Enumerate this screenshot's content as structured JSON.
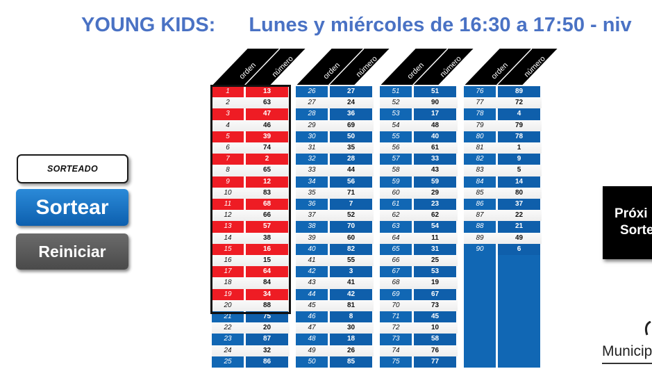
{
  "header": {
    "title_left": "YOUNG KIDS:",
    "title_right": "Lunes y miércoles de 16:30 a 17:50 - niv"
  },
  "controls": {
    "status_label": "SORTEADO",
    "draw_button": "Sortear",
    "reset_button": "Reiniciar",
    "next_line1": "Próxi",
    "next_line2": "Sorte",
    "brand_text": "Municip"
  },
  "table": {
    "col_header_order": "orden",
    "col_header_number": "número",
    "drawn_count": 20,
    "highlight_orders": [
      1,
      3,
      5,
      7,
      9,
      11,
      13,
      15,
      17,
      19
    ],
    "columns": [
      {
        "rows": [
          [
            "1",
            "13"
          ],
          [
            "2",
            "63"
          ],
          [
            "3",
            "47"
          ],
          [
            "4",
            "46"
          ],
          [
            "5",
            "39"
          ],
          [
            "6",
            "74"
          ],
          [
            "7",
            "2"
          ],
          [
            "8",
            "65"
          ],
          [
            "9",
            "12"
          ],
          [
            "10",
            "83"
          ],
          [
            "11",
            "68"
          ],
          [
            "12",
            "66"
          ],
          [
            "13",
            "57"
          ],
          [
            "14",
            "38"
          ],
          [
            "15",
            "16"
          ],
          [
            "16",
            "15"
          ],
          [
            "17",
            "64"
          ],
          [
            "18",
            "84"
          ],
          [
            "19",
            "34"
          ],
          [
            "20",
            "88"
          ],
          [
            "21",
            "75"
          ],
          [
            "22",
            "20"
          ],
          [
            "23",
            "87"
          ],
          [
            "24",
            "32"
          ],
          [
            "25",
            "86"
          ]
        ]
      },
      {
        "rows": [
          [
            "26",
            "27"
          ],
          [
            "27",
            "24"
          ],
          [
            "28",
            "36"
          ],
          [
            "29",
            "69"
          ],
          [
            "30",
            "50"
          ],
          [
            "31",
            "35"
          ],
          [
            "32",
            "28"
          ],
          [
            "33",
            "44"
          ],
          [
            "34",
            "56"
          ],
          [
            "35",
            "71"
          ],
          [
            "36",
            "7"
          ],
          [
            "37",
            "52"
          ],
          [
            "38",
            "70"
          ],
          [
            "39",
            "60"
          ],
          [
            "40",
            "82"
          ],
          [
            "41",
            "55"
          ],
          [
            "42",
            "3"
          ],
          [
            "43",
            "41"
          ],
          [
            "44",
            "42"
          ],
          [
            "45",
            "81"
          ],
          [
            "46",
            "8"
          ],
          [
            "47",
            "30"
          ],
          [
            "48",
            "18"
          ],
          [
            "49",
            "26"
          ],
          [
            "50",
            "85"
          ]
        ]
      },
      {
        "rows": [
          [
            "51",
            "51"
          ],
          [
            "52",
            "90"
          ],
          [
            "53",
            "17"
          ],
          [
            "54",
            "48"
          ],
          [
            "55",
            "40"
          ],
          [
            "56",
            "61"
          ],
          [
            "57",
            "33"
          ],
          [
            "58",
            "43"
          ],
          [
            "59",
            "59"
          ],
          [
            "60",
            "29"
          ],
          [
            "61",
            "23"
          ],
          [
            "62",
            "62"
          ],
          [
            "63",
            "54"
          ],
          [
            "64",
            "11"
          ],
          [
            "65",
            "31"
          ],
          [
            "66",
            "25"
          ],
          [
            "67",
            "53"
          ],
          [
            "68",
            "19"
          ],
          [
            "69",
            "67"
          ],
          [
            "70",
            "73"
          ],
          [
            "71",
            "45"
          ],
          [
            "72",
            "10"
          ],
          [
            "73",
            "58"
          ],
          [
            "74",
            "76"
          ],
          [
            "75",
            "77"
          ]
        ]
      },
      {
        "rows": [
          [
            "76",
            "89"
          ],
          [
            "77",
            "72"
          ],
          [
            "78",
            "4"
          ],
          [
            "79",
            "79"
          ],
          [
            "80",
            "78"
          ],
          [
            "81",
            "1"
          ],
          [
            "82",
            "9"
          ],
          [
            "83",
            "5"
          ],
          [
            "84",
            "14"
          ],
          [
            "85",
            "80"
          ],
          [
            "86",
            "37"
          ],
          [
            "87",
            "22"
          ],
          [
            "88",
            "21"
          ],
          [
            "89",
            "49"
          ],
          [
            "90",
            "6"
          ],
          [
            "",
            ""
          ],
          [
            "",
            ""
          ],
          [
            "",
            ""
          ],
          [
            "",
            ""
          ],
          [
            "",
            ""
          ],
          [
            "",
            ""
          ],
          [
            "",
            ""
          ],
          [
            "",
            ""
          ],
          [
            "",
            ""
          ],
          [
            "",
            ""
          ]
        ]
      }
    ]
  },
  "colors": {
    "title": "#4a72c4",
    "row_blue": "#1167b4",
    "row_red": "#ee1c24",
    "header_black": "#000000"
  }
}
